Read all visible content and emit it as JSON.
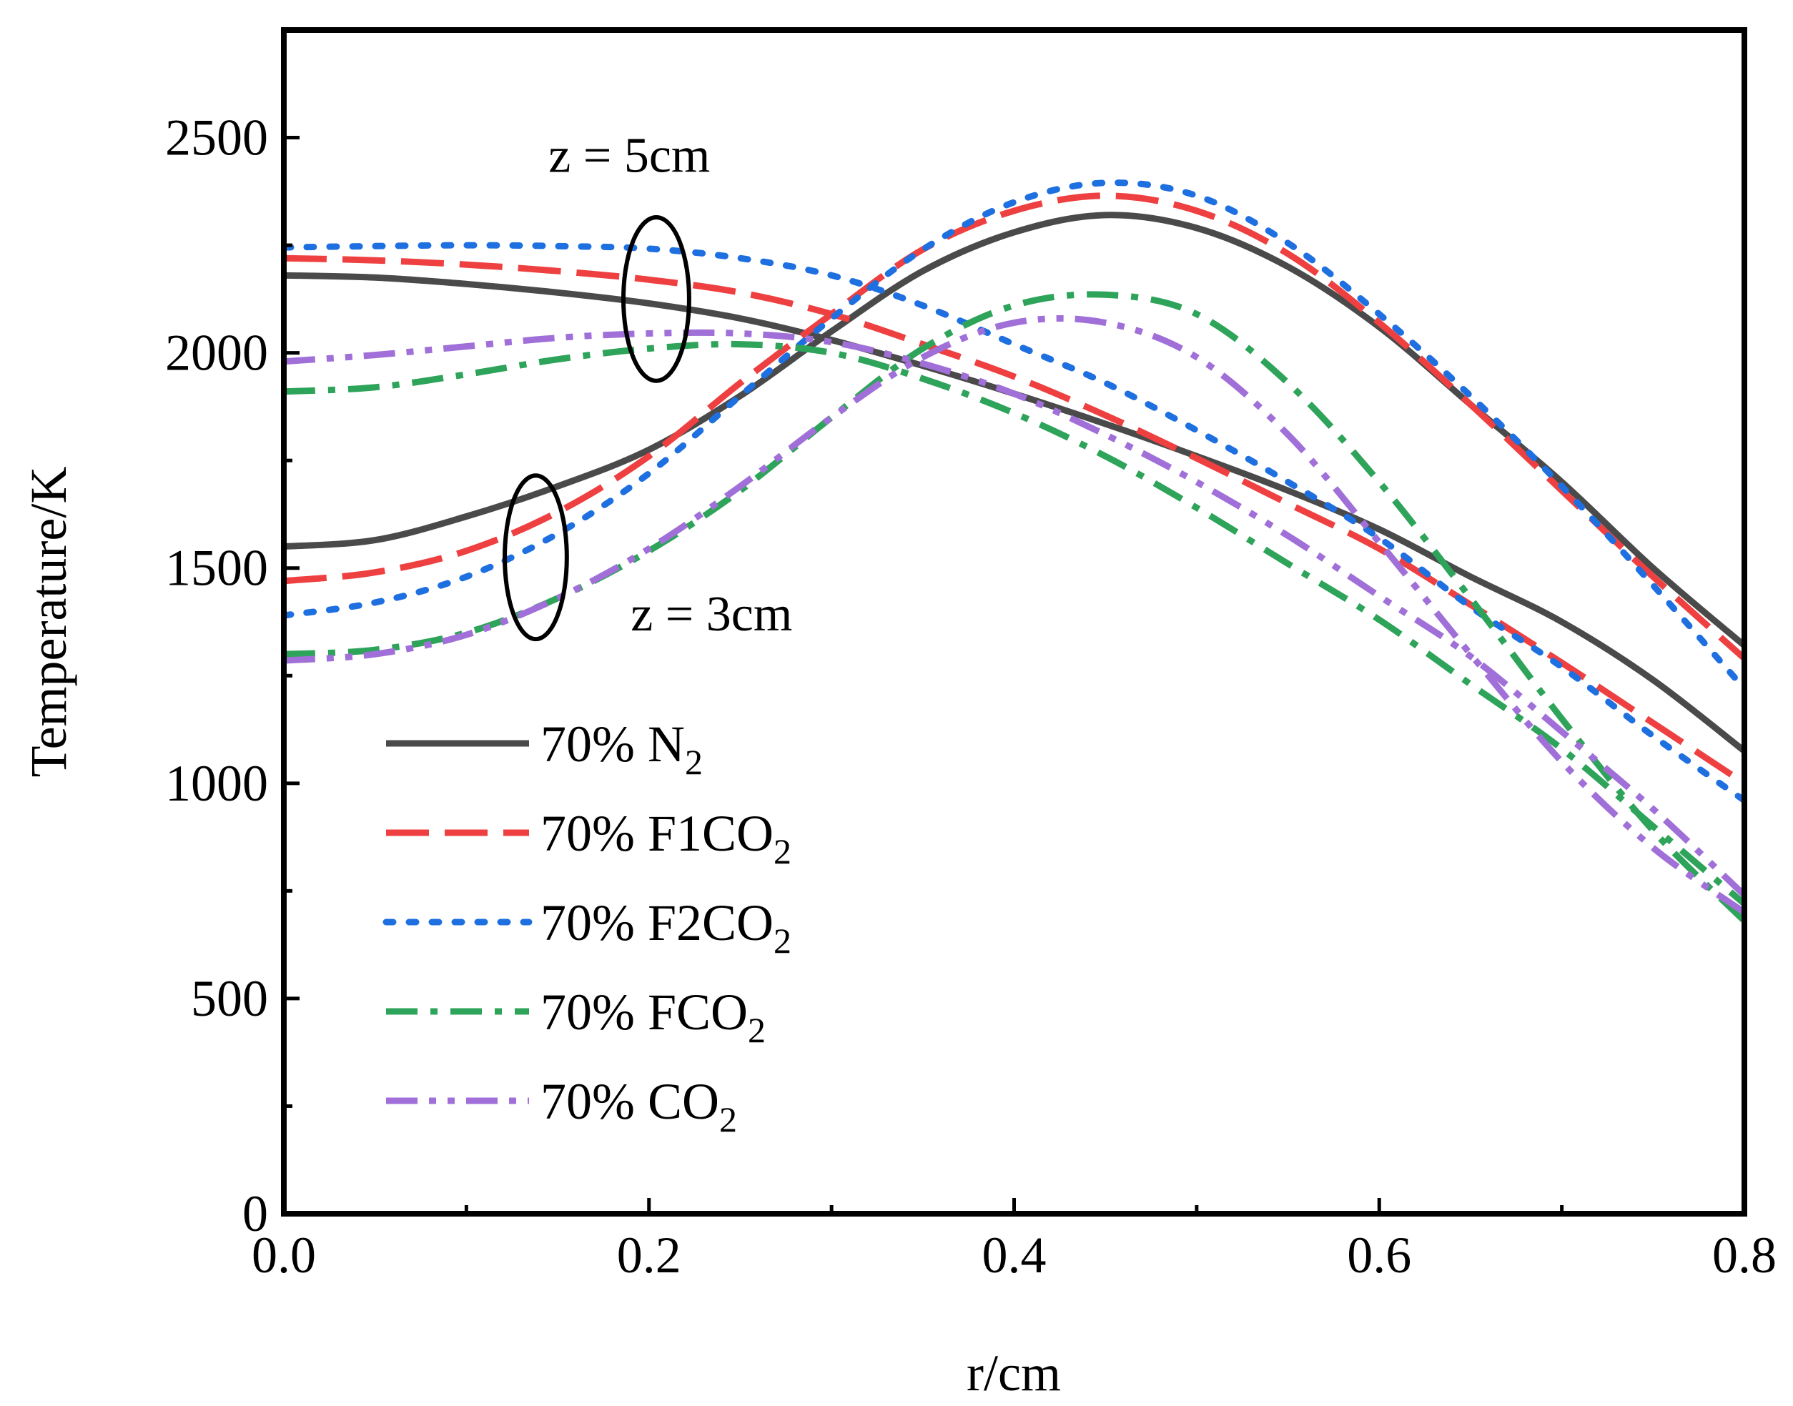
{
  "chart_data": {
    "type": "line",
    "xlabel": "r/cm",
    "ylabel": "Temperature/K",
    "xlim": [
      0,
      0.8
    ],
    "ylim": [
      0,
      2750
    ],
    "xticks": [
      "0.0",
      "0.2",
      "0.4",
      "0.6",
      "0.8"
    ],
    "xtick_values": [
      0,
      0.2,
      0.4,
      0.6,
      0.8
    ],
    "yticks": [
      "0",
      "500",
      "1000",
      "1500",
      "2000",
      "2500"
    ],
    "ytick_values": [
      0,
      500,
      1000,
      1500,
      2000,
      2500
    ],
    "grid": false,
    "legend_position": "lower-left",
    "annotations": [
      {
        "text": "z = 5cm",
        "x": 0.145,
        "y": 2420
      },
      {
        "text": "z = 3cm",
        "x": 0.19,
        "y": 1355
      }
    ],
    "ellipses": [
      {
        "name": "z = 5cm group",
        "cx": 0.204,
        "cy": 2125,
        "rx": 0.018,
        "ry": 190
      },
      {
        "name": "z = 3cm group",
        "cx": 0.138,
        "cy": 1525,
        "rx": 0.017,
        "ry": 190
      }
    ],
    "series": [
      {
        "name": "70% N2",
        "label_main": "70% N",
        "label_sub": "2",
        "color": "#4a4a4a",
        "dash": "solid",
        "curves": [
          {
            "z": "5cm",
            "x": [
              0,
              0.05,
              0.1,
              0.15,
              0.2,
              0.25,
              0.3,
              0.35,
              0.4,
              0.45,
              0.5,
              0.55,
              0.6,
              0.65,
              0.7,
              0.75,
              0.8
            ],
            "y": [
              2180,
              2175,
              2160,
              2140,
              2115,
              2080,
              2030,
              1970,
              1905,
              1835,
              1760,
              1680,
              1590,
              1480,
              1375,
              1240,
              1075
            ]
          },
          {
            "z": "3cm",
            "x": [
              0,
              0.05,
              0.1,
              0.15,
              0.2,
              0.25,
              0.3,
              0.35,
              0.4,
              0.45,
              0.5,
              0.55,
              0.6,
              0.65,
              0.7,
              0.75,
              0.8
            ],
            "y": [
              1550,
              1565,
              1620,
              1690,
              1775,
              1900,
              2050,
              2190,
              2280,
              2320,
              2290,
              2200,
              2060,
              1880,
              1700,
              1500,
              1320
            ]
          }
        ]
      },
      {
        "name": "70% F1CO2",
        "label_main": "70% F1CO",
        "label_sub": "2",
        "color": "#ee4040",
        "dash": "long-dash",
        "curves": [
          {
            "z": "5cm",
            "x": [
              0,
              0.05,
              0.1,
              0.15,
              0.2,
              0.25,
              0.3,
              0.35,
              0.4,
              0.45,
              0.5,
              0.55,
              0.6,
              0.65,
              0.7,
              0.75,
              0.8
            ],
            "y": [
              2220,
              2215,
              2205,
              2190,
              2170,
              2140,
              2090,
              2020,
              1945,
              1855,
              1755,
              1650,
              1545,
              1415,
              1280,
              1140,
              1000
            ]
          },
          {
            "z": "3cm",
            "x": [
              0,
              0.05,
              0.1,
              0.15,
              0.2,
              0.25,
              0.3,
              0.35,
              0.4,
              0.45,
              0.5,
              0.55,
              0.6,
              0.65,
              0.7,
              0.75,
              0.8
            ],
            "y": [
              1470,
              1490,
              1540,
              1630,
              1760,
              1930,
              2090,
              2240,
              2330,
              2365,
              2330,
              2230,
              2070,
              1880,
              1680,
              1480,
              1290
            ]
          }
        ]
      },
      {
        "name": "70% F2CO2",
        "label_main": "70% F2CO",
        "label_sub": "2",
        "color": "#1e6fe0",
        "dash": "dot",
        "curves": [
          {
            "z": "5cm",
            "x": [
              0,
              0.05,
              0.1,
              0.15,
              0.2,
              0.25,
              0.3,
              0.35,
              0.4,
              0.45,
              0.5,
              0.55,
              0.6,
              0.65,
              0.7,
              0.75,
              0.8
            ],
            "y": [
              2245,
              2248,
              2250,
              2248,
              2242,
              2220,
              2180,
              2110,
              2020,
              1930,
              1820,
              1700,
              1570,
              1410,
              1270,
              1110,
              960
            ]
          },
          {
            "z": "3cm",
            "x": [
              0,
              0.05,
              0.1,
              0.15,
              0.2,
              0.25,
              0.3,
              0.35,
              0.4,
              0.45,
              0.5,
              0.55,
              0.6,
              0.65,
              0.7,
              0.75,
              0.8
            ],
            "y": [
              1390,
              1420,
              1480,
              1580,
              1720,
              1900,
              2080,
              2240,
              2350,
              2395,
              2365,
              2255,
              2090,
              1900,
              1690,
              1460,
              1220
            ]
          }
        ]
      },
      {
        "name": "70% FCO2",
        "label_main": "70% FCO",
        "label_sub": "2",
        "color": "#2ea35a",
        "dash": "dash-dot",
        "curves": [
          {
            "z": "5cm",
            "x": [
              0,
              0.05,
              0.1,
              0.15,
              0.2,
              0.25,
              0.3,
              0.35,
              0.4,
              0.45,
              0.5,
              0.55,
              0.6,
              0.65,
              0.7,
              0.75,
              0.8
            ],
            "y": [
              1910,
              1920,
              1950,
              1985,
              2010,
              2020,
              2000,
              1940,
              1860,
              1760,
              1640,
              1510,
              1380,
              1230,
              1080,
              900,
              720
            ]
          },
          {
            "z": "3cm",
            "x": [
              0,
              0.05,
              0.1,
              0.15,
              0.2,
              0.25,
              0.3,
              0.35,
              0.4,
              0.45,
              0.5,
              0.55,
              0.6,
              0.65,
              0.7,
              0.75,
              0.8
            ],
            "y": [
              1300,
              1310,
              1350,
              1430,
              1540,
              1680,
              1850,
              2010,
              2110,
              2135,
              2090,
              1930,
              1700,
              1430,
              1150,
              890,
              680
            ]
          }
        ]
      },
      {
        "name": "70% CO2",
        "label_main": "70% CO",
        "label_sub": "2",
        "color": "#a070d8",
        "dash": "dash-dot-dot",
        "curves": [
          {
            "z": "5cm",
            "x": [
              0,
              0.05,
              0.1,
              0.15,
              0.2,
              0.25,
              0.3,
              0.35,
              0.4,
              0.45,
              0.5,
              0.55,
              0.6,
              0.65,
              0.7,
              0.75,
              0.8
            ],
            "y": [
              1980,
              1995,
              2015,
              2035,
              2045,
              2045,
              2025,
              1975,
              1905,
              1810,
              1700,
              1575,
              1435,
              1295,
              1120,
              940,
              740
            ]
          },
          {
            "z": "3cm",
            "x": [
              0,
              0.05,
              0.1,
              0.15,
              0.2,
              0.25,
              0.3,
              0.35,
              0.4,
              0.45,
              0.5,
              0.55,
              0.6,
              0.65,
              0.7,
              0.75,
              0.8
            ],
            "y": [
              1285,
              1300,
              1345,
              1430,
              1545,
              1690,
              1850,
              1990,
              2070,
              2070,
              1990,
              1810,
              1560,
              1300,
              1050,
              850,
              700
            ]
          }
        ]
      }
    ]
  }
}
